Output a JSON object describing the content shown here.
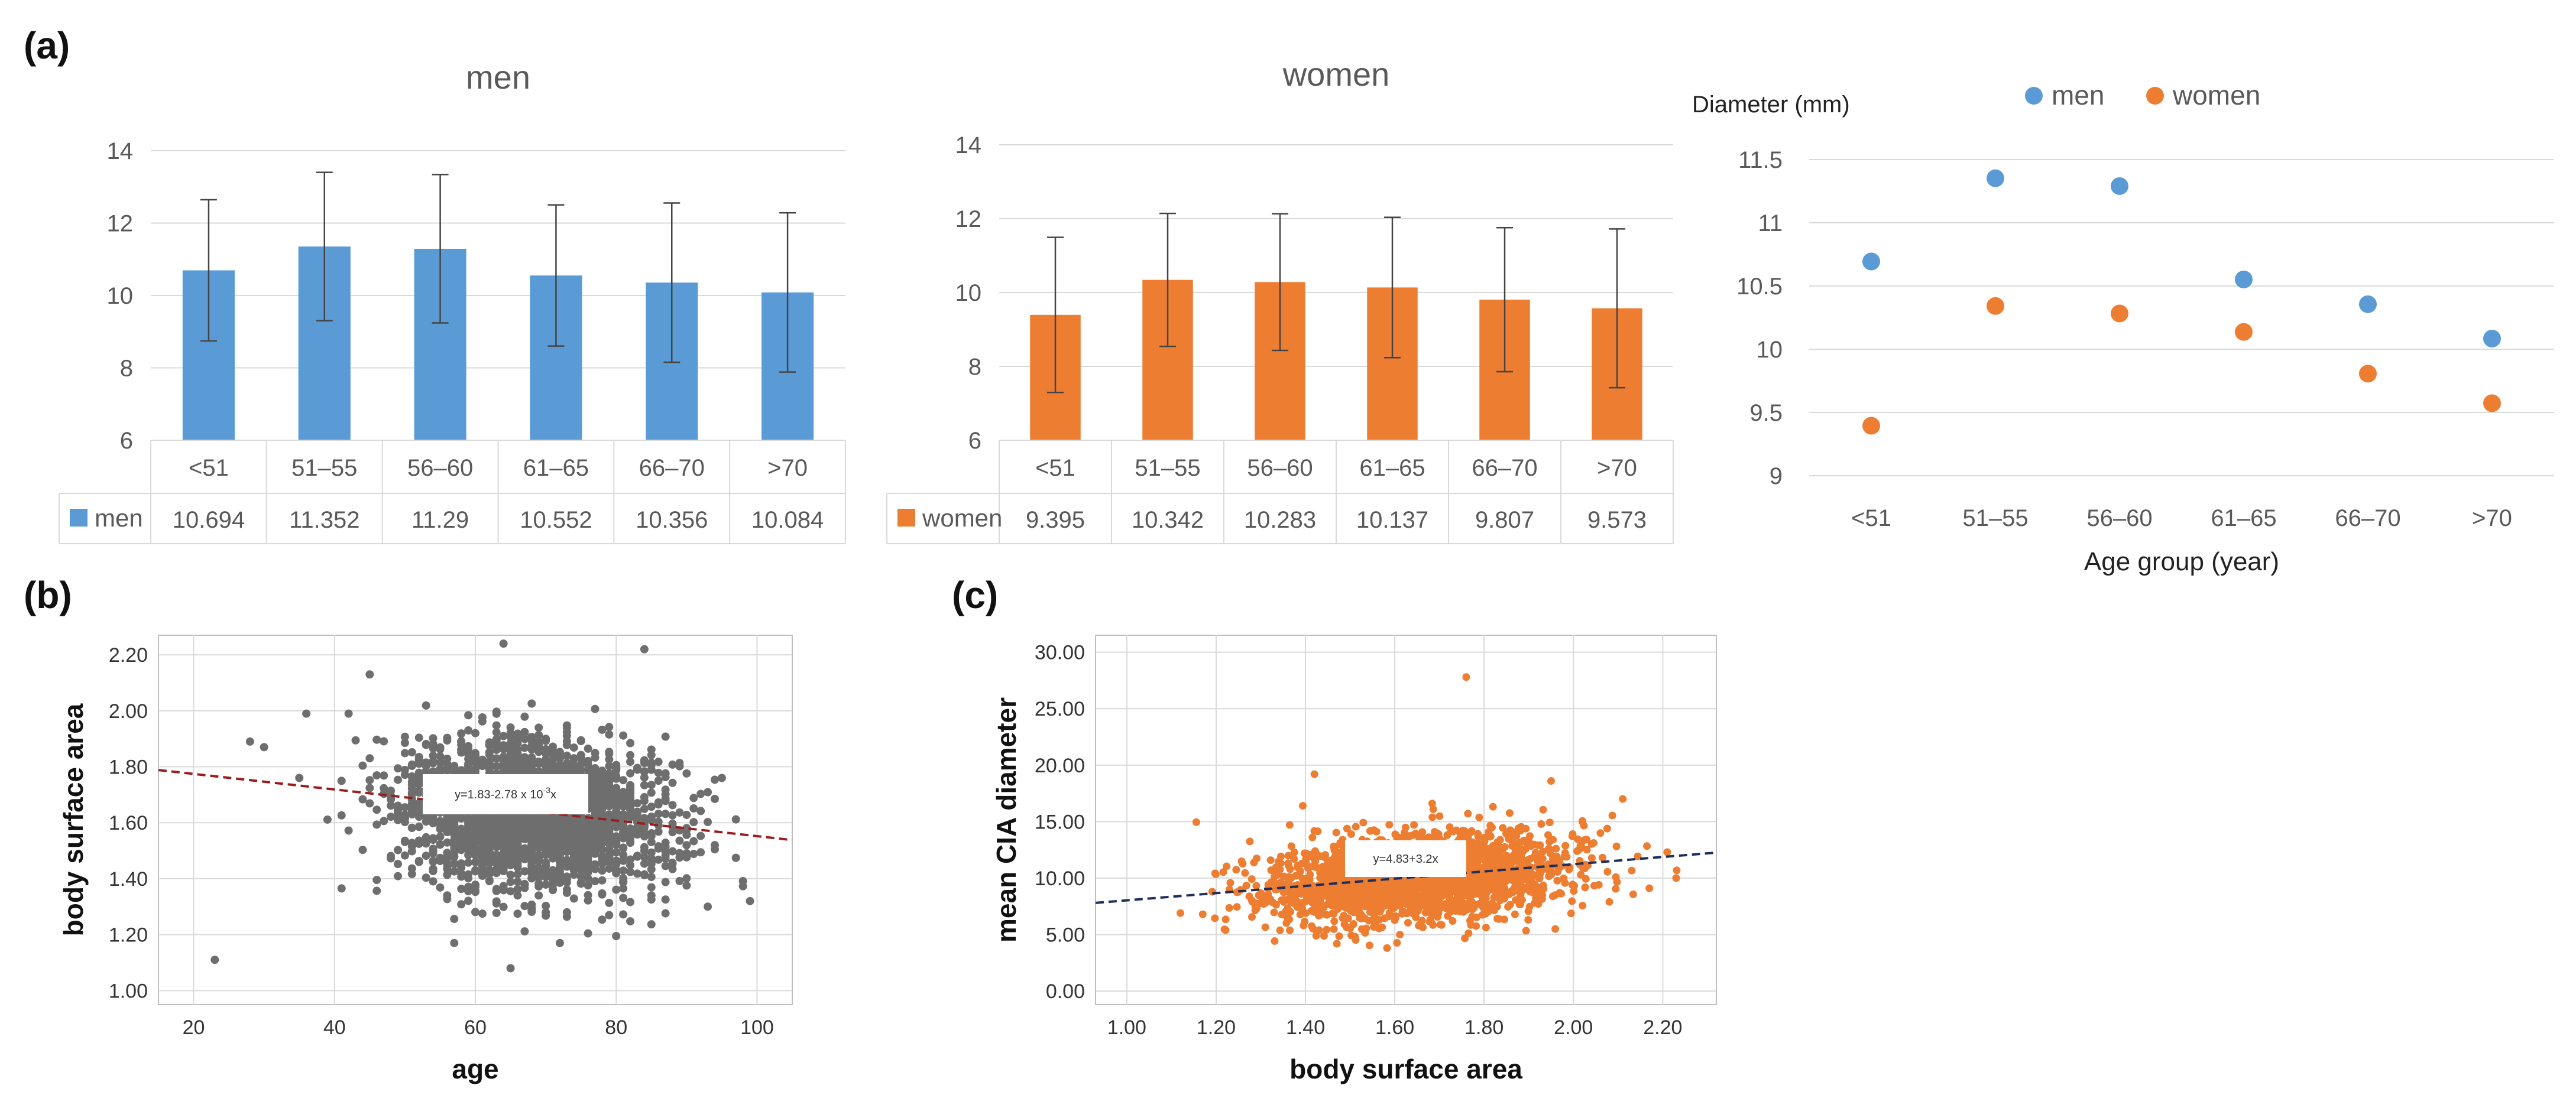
{
  "panel_labels": {
    "a": "(a)",
    "b": "(b)",
    "c": "(c)"
  },
  "colors": {
    "men": "#5b9bd5",
    "women": "#ed7d31",
    "scatter_b": "#6e6e6e",
    "scatter_c": "#ed7d31",
    "fit_b": "#9b1c1c",
    "fit_c": "#1f2d5a",
    "grid": "#d9d9d9",
    "text": "#595959"
  },
  "chart_data": [
    {
      "id": "men_bar",
      "type": "bar",
      "title": "men",
      "categories": [
        "<51",
        "51–55",
        "56–60",
        "61–65",
        "66–70",
        ">70"
      ],
      "series": [
        {
          "name": "men",
          "values": [
            10.694,
            11.352,
            11.29,
            10.552,
            10.356,
            10.084
          ],
          "errors": [
            1.95,
            2.05,
            2.05,
            1.95,
            2.2,
            2.2
          ]
        }
      ],
      "value_labels": [
        "10.694",
        "11.352",
        "11.29",
        "10.552",
        "10.356",
        "10.084"
      ],
      "ylim": [
        6,
        14
      ],
      "yticks": [
        "6",
        "8",
        "10",
        "12",
        "14"
      ],
      "ytick_values": [
        6,
        8,
        10,
        12,
        14
      ],
      "grid": true,
      "legend": "data-table"
    },
    {
      "id": "women_bar",
      "type": "bar",
      "title": "women",
      "categories": [
        "<51",
        "51–55",
        "56–60",
        "61–65",
        "66–70",
        ">70"
      ],
      "series": [
        {
          "name": "women",
          "values": [
            9.395,
            10.342,
            10.283,
            10.137,
            9.807,
            9.573
          ],
          "errors": [
            2.1,
            1.8,
            1.85,
            1.9,
            1.95,
            2.15
          ]
        }
      ],
      "value_labels": [
        "9.395",
        "10.342",
        "10.283",
        "10.137",
        "9.807",
        "9.573"
      ],
      "ylim": [
        6,
        14
      ],
      "yticks": [
        "6",
        "8",
        "10",
        "12",
        "14"
      ],
      "ytick_values": [
        6,
        8,
        10,
        12,
        14
      ],
      "grid": true,
      "legend": "data-table"
    },
    {
      "id": "diameter_scatter",
      "type": "scatter",
      "ylabel": "Diameter (mm)",
      "xlabel": "Age group (year)",
      "categories": [
        "<51",
        "51–55",
        "56–60",
        "61–65",
        "66–70",
        ">70"
      ],
      "series": [
        {
          "name": "men",
          "values": [
            10.694,
            11.352,
            11.29,
            10.552,
            10.356,
            10.084
          ]
        },
        {
          "name": "women",
          "values": [
            9.395,
            10.342,
            10.283,
            10.137,
            9.807,
            9.573
          ]
        }
      ],
      "ylim": [
        9,
        11.5
      ],
      "yticks": [
        "9",
        "9.5",
        "10",
        "10.5",
        "11",
        "11.5"
      ],
      "ytick_values": [
        9,
        9.5,
        10,
        10.5,
        11,
        11.5
      ],
      "grid": true,
      "legend": "top"
    },
    {
      "id": "bsa_vs_age",
      "type": "scatter",
      "xlabel": "age",
      "ylabel": "body surface area",
      "xlim": [
        15,
        105
      ],
      "ylim": [
        0.95,
        2.27
      ],
      "xticks": [
        "20",
        "40",
        "60",
        "80",
        "100"
      ],
      "xtick_values": [
        20,
        40,
        60,
        80,
        100
      ],
      "yticks": [
        "1.00",
        "1.20",
        "1.40",
        "1.60",
        "1.80",
        "2.00",
        "2.20"
      ],
      "ytick_values": [
        1.0,
        1.2,
        1.4,
        1.6,
        1.8,
        2.0,
        2.2
      ],
      "fit": {
        "intercept": 1.83,
        "slope": -0.00278,
        "label_main": "y=1.83-2.78 x 10",
        "label_sup": "-3",
        "label_end": "x"
      },
      "cloud": {
        "x_mean": 68,
        "x_sd": 9.5,
        "y_mean": 1.63,
        "y_sd": 0.13,
        "n": 2400
      },
      "outliers": [
        [
          23,
          1.11
        ],
        [
          65,
          1.08
        ],
        [
          64,
          2.24
        ],
        [
          84,
          2.22
        ],
        [
          57,
          1.17
        ],
        [
          72,
          1.17
        ],
        [
          28,
          1.89
        ],
        [
          30,
          1.87
        ],
        [
          95,
          1.76
        ],
        [
          93,
          1.3
        ],
        [
          36,
          1.99
        ],
        [
          35,
          1.76
        ],
        [
          42,
          1.99
        ],
        [
          45,
          2.13
        ]
      ],
      "grid": true
    },
    {
      "id": "cia_vs_bsa",
      "type": "scatter",
      "xlabel": "body surface area",
      "ylabel": "mean CIA diameter",
      "xlim": [
        0.93,
        2.32
      ],
      "ylim": [
        -1.2,
        31.5
      ],
      "xticks": [
        "1.00",
        "1.20",
        "1.40",
        "1.60",
        "1.80",
        "2.00",
        "2.20"
      ],
      "xtick_values": [
        1.0,
        1.2,
        1.4,
        1.6,
        1.8,
        2.0,
        2.2
      ],
      "yticks": [
        "0.00",
        "5.00",
        "10.00",
        "15.00",
        "20.00",
        "25.00",
        "30.00"
      ],
      "ytick_values": [
        0,
        5,
        10,
        15,
        20,
        25,
        30
      ],
      "fit": {
        "intercept": 4.83,
        "slope": 3.2,
        "label_main": "y=4.83+3.2x",
        "label_sup": "",
        "label_end": ""
      },
      "cloud": {
        "x_mean": 1.65,
        "x_sd": 0.16,
        "y_mean": 10.1,
        "y_sd": 1.9,
        "n": 2400
      },
      "outliers": [
        [
          1.76,
          27.8
        ],
        [
          1.42,
          19.2
        ],
        [
          1.12,
          6.9
        ],
        [
          1.17,
          6.8
        ],
        [
          2.23,
          10.0
        ],
        [
          2.17,
          9.1
        ],
        [
          1.95,
          18.6
        ],
        [
          2.21,
          12.3
        ]
      ],
      "grid": true
    }
  ]
}
